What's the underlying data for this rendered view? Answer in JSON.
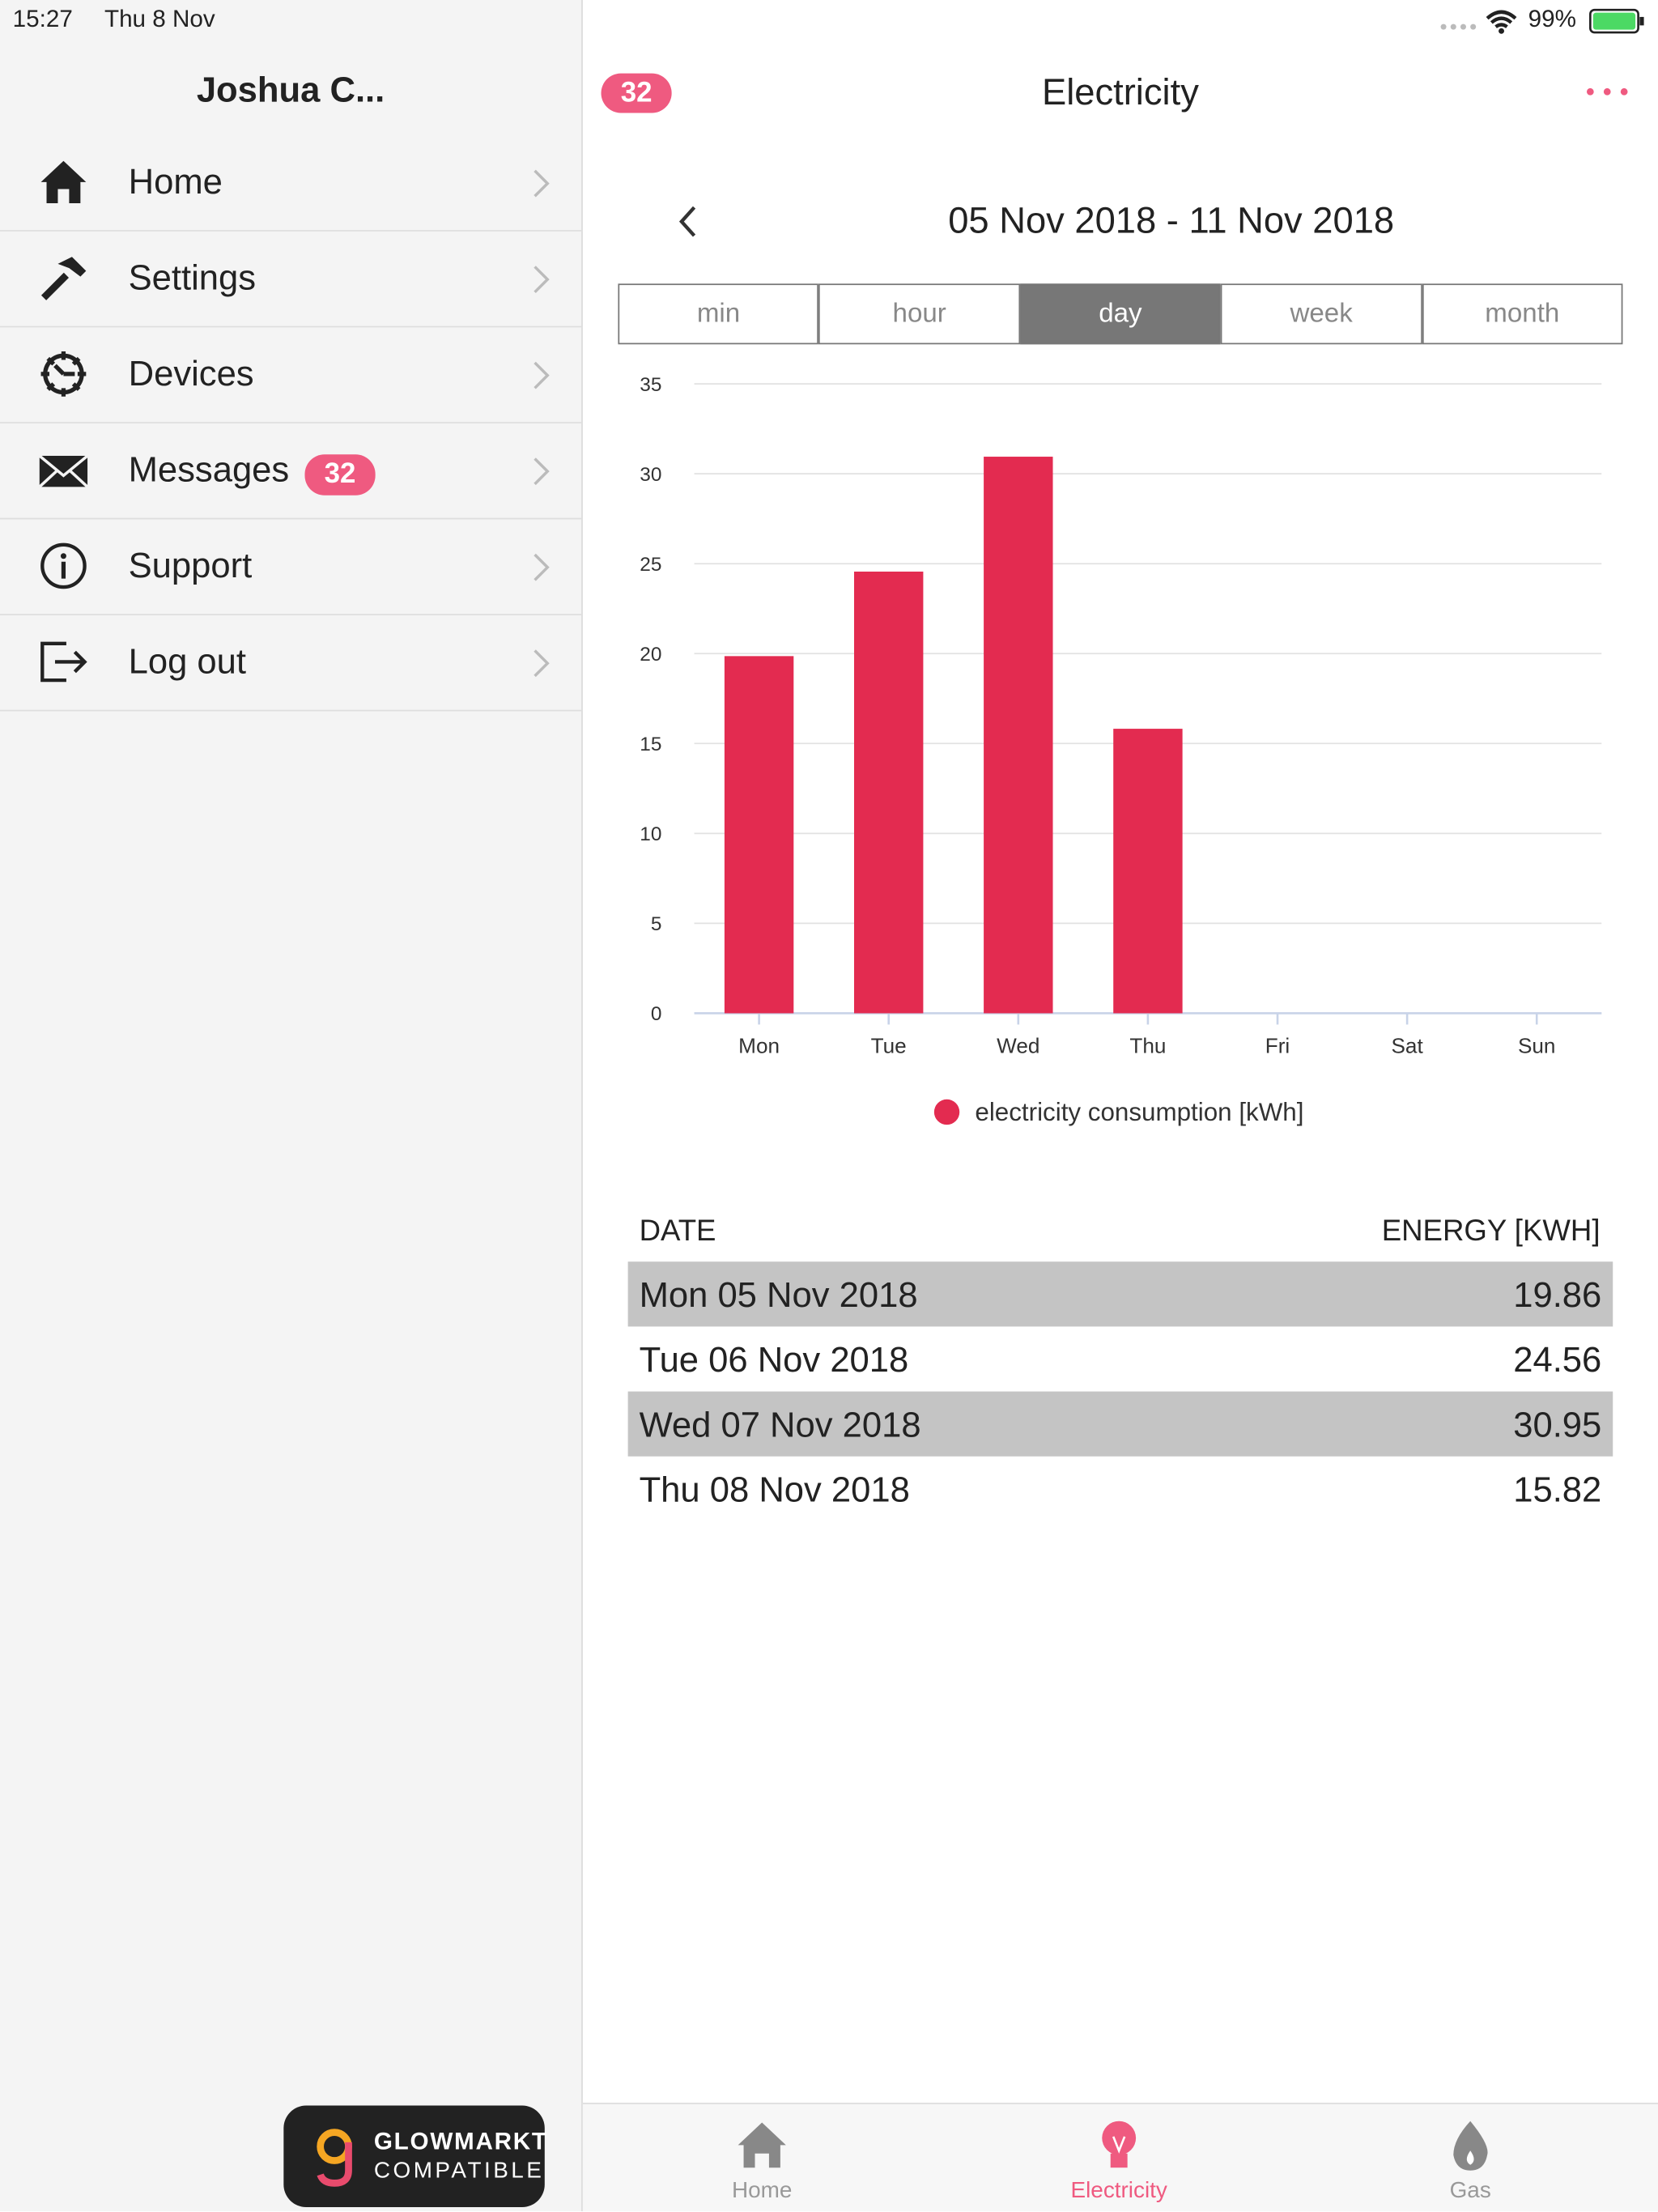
{
  "status_bar": {
    "time": "15:27",
    "date": "Thu 8 Nov",
    "battery": "99%"
  },
  "sidebar": {
    "user": "Joshua C...",
    "menu": [
      {
        "label": "Home"
      },
      {
        "label": "Settings"
      },
      {
        "label": "Devices"
      },
      {
        "label": "Messages",
        "badge": "32"
      },
      {
        "label": "Support"
      },
      {
        "label": "Log out"
      }
    ],
    "logo": {
      "line1": "GLOWMARKT",
      "line2": "COMPATIBLE"
    }
  },
  "header": {
    "badge": "32",
    "title": "Electricity"
  },
  "date_range": "05 Nov 2018 - 11 Nov 2018",
  "tabs": [
    {
      "label": "min",
      "active": false
    },
    {
      "label": "hour",
      "active": false
    },
    {
      "label": "day",
      "active": true
    },
    {
      "label": "week",
      "active": false
    },
    {
      "label": "month",
      "active": false
    }
  ],
  "chart_data": {
    "type": "bar",
    "categories": [
      "Mon",
      "Tue",
      "Wed",
      "Thu",
      "Fri",
      "Sat",
      "Sun"
    ],
    "series": [
      {
        "name": "electricity consumption [kWh]",
        "color": "#e32b50",
        "values": [
          19.86,
          24.56,
          30.95,
          15.82,
          null,
          null,
          null
        ]
      }
    ],
    "ylim": [
      0,
      35
    ],
    "yticks": [
      0,
      5,
      10,
      15,
      20,
      25,
      30,
      35
    ],
    "grid": true,
    "legend": "bottom"
  },
  "table": {
    "columns": [
      "DATE",
      "ENERGY [KWH]"
    ],
    "rows": [
      [
        "Mon 05 Nov 2018",
        19.86
      ],
      [
        "Tue 06 Nov 2018",
        24.56
      ],
      [
        "Wed 07 Nov 2018",
        30.95
      ],
      [
        "Thu 08 Nov 2018",
        15.82
      ]
    ]
  },
  "tab_bar": [
    {
      "label": "Home",
      "active": false
    },
    {
      "label": "Electricity",
      "active": true
    },
    {
      "label": "Gas",
      "active": false
    }
  ]
}
